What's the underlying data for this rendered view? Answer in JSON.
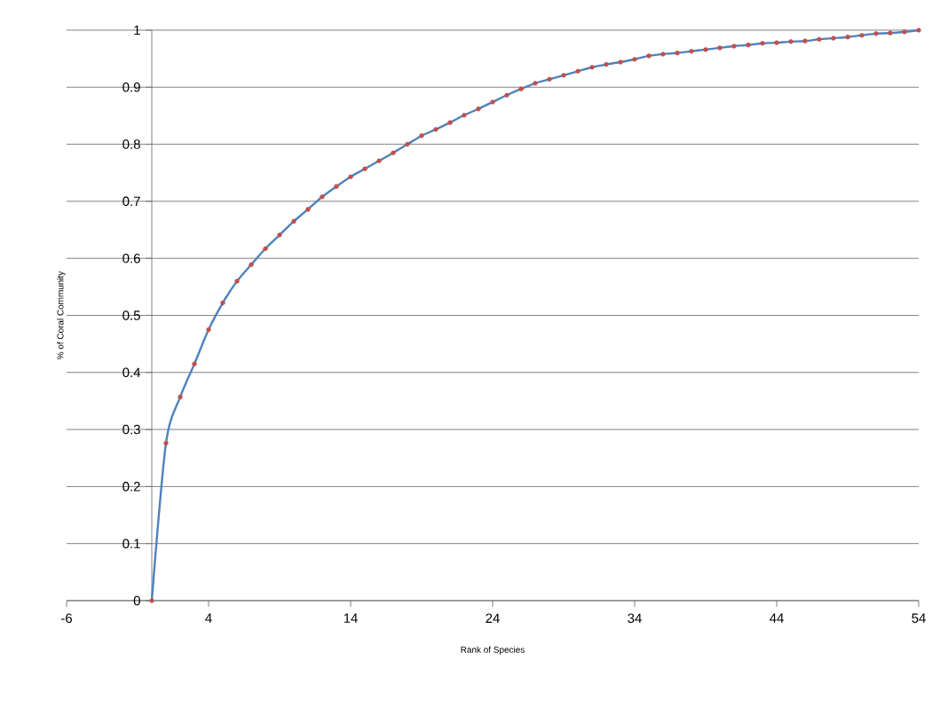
{
  "chart_data": {
    "type": "line",
    "xlabel": "Rank of Species",
    "ylabel": "% of Coral Community",
    "x": [
      0,
      1,
      2,
      3,
      4,
      5,
      6,
      7,
      8,
      9,
      10,
      11,
      12,
      13,
      14,
      15,
      16,
      17,
      18,
      19,
      20,
      21,
      22,
      23,
      24,
      25,
      26,
      27,
      28,
      29,
      30,
      31,
      32,
      33,
      34,
      35,
      36,
      37,
      38,
      39,
      40,
      41,
      42,
      43,
      44,
      45,
      46,
      47,
      48,
      49,
      50,
      51,
      52,
      53,
      54
    ],
    "series": [
      {
        "color": "#4f81bd",
        "values": [
          0,
          0.276,
          0.357,
          0.415,
          0.475,
          0.522,
          0.56,
          0.589,
          0.617,
          0.641,
          0.665,
          0.686,
          0.708,
          0.726,
          0.743,
          0.757,
          0.771,
          0.785,
          0.8,
          0.815,
          0.826,
          0.838,
          0.851,
          0.862,
          0.874,
          0.886,
          0.897,
          0.907,
          0.914,
          0.921,
          0.928,
          0.935,
          0.94,
          0.944,
          0.949,
          0.955,
          0.958,
          0.96,
          0.963,
          0.966,
          0.969,
          0.972,
          0.974,
          0.977,
          0.978,
          0.98,
          0.981,
          0.984,
          0.986,
          0.988,
          0.991,
          0.994,
          0.995,
          0.997,
          1.0
        ]
      }
    ],
    "xlim": [
      -6,
      54
    ],
    "ylim": [
      0,
      1
    ],
    "xticks": [
      -6,
      4,
      14,
      24,
      34,
      44,
      54
    ],
    "yticks": [
      0,
      0.1,
      0.2,
      0.3,
      0.4,
      0.5,
      0.6,
      0.7,
      0.8,
      0.9,
      1
    ],
    "grid": "y",
    "marker": "circle",
    "line_style": "solid"
  }
}
